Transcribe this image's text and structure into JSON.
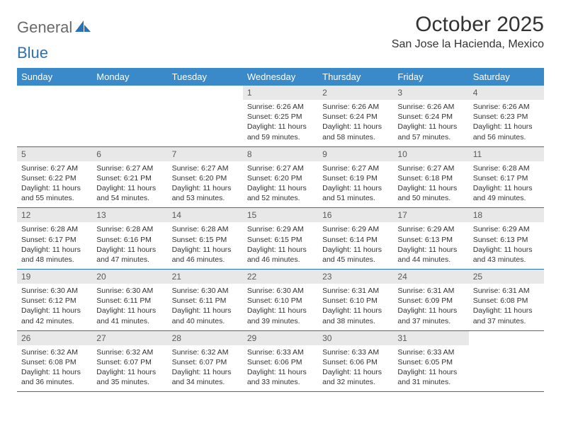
{
  "logo": {
    "word1": "General",
    "word2": "Blue"
  },
  "title": "October 2025",
  "location": "San Jose la Hacienda, Mexico",
  "colors": {
    "header_bg": "#3a89c9",
    "border": "#2a72b5",
    "daynum_bg": "#e8e8e8",
    "text": "#333333",
    "logo_gray": "#6a6a6a",
    "logo_blue": "#2a72b5"
  },
  "weekdays": [
    "Sunday",
    "Monday",
    "Tuesday",
    "Wednesday",
    "Thursday",
    "Friday",
    "Saturday"
  ],
  "weeks": [
    [
      {
        "n": "",
        "sr": "",
        "ss": "",
        "dl1": "",
        "dl2": ""
      },
      {
        "n": "",
        "sr": "",
        "ss": "",
        "dl1": "",
        "dl2": ""
      },
      {
        "n": "",
        "sr": "",
        "ss": "",
        "dl1": "",
        "dl2": ""
      },
      {
        "n": "1",
        "sr": "Sunrise: 6:26 AM",
        "ss": "Sunset: 6:25 PM",
        "dl1": "Daylight: 11 hours",
        "dl2": "and 59 minutes."
      },
      {
        "n": "2",
        "sr": "Sunrise: 6:26 AM",
        "ss": "Sunset: 6:24 PM",
        "dl1": "Daylight: 11 hours",
        "dl2": "and 58 minutes."
      },
      {
        "n": "3",
        "sr": "Sunrise: 6:26 AM",
        "ss": "Sunset: 6:24 PM",
        "dl1": "Daylight: 11 hours",
        "dl2": "and 57 minutes."
      },
      {
        "n": "4",
        "sr": "Sunrise: 6:26 AM",
        "ss": "Sunset: 6:23 PM",
        "dl1": "Daylight: 11 hours",
        "dl2": "and 56 minutes."
      }
    ],
    [
      {
        "n": "5",
        "sr": "Sunrise: 6:27 AM",
        "ss": "Sunset: 6:22 PM",
        "dl1": "Daylight: 11 hours",
        "dl2": "and 55 minutes."
      },
      {
        "n": "6",
        "sr": "Sunrise: 6:27 AM",
        "ss": "Sunset: 6:21 PM",
        "dl1": "Daylight: 11 hours",
        "dl2": "and 54 minutes."
      },
      {
        "n": "7",
        "sr": "Sunrise: 6:27 AM",
        "ss": "Sunset: 6:20 PM",
        "dl1": "Daylight: 11 hours",
        "dl2": "and 53 minutes."
      },
      {
        "n": "8",
        "sr": "Sunrise: 6:27 AM",
        "ss": "Sunset: 6:20 PM",
        "dl1": "Daylight: 11 hours",
        "dl2": "and 52 minutes."
      },
      {
        "n": "9",
        "sr": "Sunrise: 6:27 AM",
        "ss": "Sunset: 6:19 PM",
        "dl1": "Daylight: 11 hours",
        "dl2": "and 51 minutes."
      },
      {
        "n": "10",
        "sr": "Sunrise: 6:27 AM",
        "ss": "Sunset: 6:18 PM",
        "dl1": "Daylight: 11 hours",
        "dl2": "and 50 minutes."
      },
      {
        "n": "11",
        "sr": "Sunrise: 6:28 AM",
        "ss": "Sunset: 6:17 PM",
        "dl1": "Daylight: 11 hours",
        "dl2": "and 49 minutes."
      }
    ],
    [
      {
        "n": "12",
        "sr": "Sunrise: 6:28 AM",
        "ss": "Sunset: 6:17 PM",
        "dl1": "Daylight: 11 hours",
        "dl2": "and 48 minutes."
      },
      {
        "n": "13",
        "sr": "Sunrise: 6:28 AM",
        "ss": "Sunset: 6:16 PM",
        "dl1": "Daylight: 11 hours",
        "dl2": "and 47 minutes."
      },
      {
        "n": "14",
        "sr": "Sunrise: 6:28 AM",
        "ss": "Sunset: 6:15 PM",
        "dl1": "Daylight: 11 hours",
        "dl2": "and 46 minutes."
      },
      {
        "n": "15",
        "sr": "Sunrise: 6:29 AM",
        "ss": "Sunset: 6:15 PM",
        "dl1": "Daylight: 11 hours",
        "dl2": "and 46 minutes."
      },
      {
        "n": "16",
        "sr": "Sunrise: 6:29 AM",
        "ss": "Sunset: 6:14 PM",
        "dl1": "Daylight: 11 hours",
        "dl2": "and 45 minutes."
      },
      {
        "n": "17",
        "sr": "Sunrise: 6:29 AM",
        "ss": "Sunset: 6:13 PM",
        "dl1": "Daylight: 11 hours",
        "dl2": "and 44 minutes."
      },
      {
        "n": "18",
        "sr": "Sunrise: 6:29 AM",
        "ss": "Sunset: 6:13 PM",
        "dl1": "Daylight: 11 hours",
        "dl2": "and 43 minutes."
      }
    ],
    [
      {
        "n": "19",
        "sr": "Sunrise: 6:30 AM",
        "ss": "Sunset: 6:12 PM",
        "dl1": "Daylight: 11 hours",
        "dl2": "and 42 minutes."
      },
      {
        "n": "20",
        "sr": "Sunrise: 6:30 AM",
        "ss": "Sunset: 6:11 PM",
        "dl1": "Daylight: 11 hours",
        "dl2": "and 41 minutes."
      },
      {
        "n": "21",
        "sr": "Sunrise: 6:30 AM",
        "ss": "Sunset: 6:11 PM",
        "dl1": "Daylight: 11 hours",
        "dl2": "and 40 minutes."
      },
      {
        "n": "22",
        "sr": "Sunrise: 6:30 AM",
        "ss": "Sunset: 6:10 PM",
        "dl1": "Daylight: 11 hours",
        "dl2": "and 39 minutes."
      },
      {
        "n": "23",
        "sr": "Sunrise: 6:31 AM",
        "ss": "Sunset: 6:10 PM",
        "dl1": "Daylight: 11 hours",
        "dl2": "and 38 minutes."
      },
      {
        "n": "24",
        "sr": "Sunrise: 6:31 AM",
        "ss": "Sunset: 6:09 PM",
        "dl1": "Daylight: 11 hours",
        "dl2": "and 37 minutes."
      },
      {
        "n": "25",
        "sr": "Sunrise: 6:31 AM",
        "ss": "Sunset: 6:08 PM",
        "dl1": "Daylight: 11 hours",
        "dl2": "and 37 minutes."
      }
    ],
    [
      {
        "n": "26",
        "sr": "Sunrise: 6:32 AM",
        "ss": "Sunset: 6:08 PM",
        "dl1": "Daylight: 11 hours",
        "dl2": "and 36 minutes."
      },
      {
        "n": "27",
        "sr": "Sunrise: 6:32 AM",
        "ss": "Sunset: 6:07 PM",
        "dl1": "Daylight: 11 hours",
        "dl2": "and 35 minutes."
      },
      {
        "n": "28",
        "sr": "Sunrise: 6:32 AM",
        "ss": "Sunset: 6:07 PM",
        "dl1": "Daylight: 11 hours",
        "dl2": "and 34 minutes."
      },
      {
        "n": "29",
        "sr": "Sunrise: 6:33 AM",
        "ss": "Sunset: 6:06 PM",
        "dl1": "Daylight: 11 hours",
        "dl2": "and 33 minutes."
      },
      {
        "n": "30",
        "sr": "Sunrise: 6:33 AM",
        "ss": "Sunset: 6:06 PM",
        "dl1": "Daylight: 11 hours",
        "dl2": "and 32 minutes."
      },
      {
        "n": "31",
        "sr": "Sunrise: 6:33 AM",
        "ss": "Sunset: 6:05 PM",
        "dl1": "Daylight: 11 hours",
        "dl2": "and 31 minutes."
      },
      {
        "n": "",
        "sr": "",
        "ss": "",
        "dl1": "",
        "dl2": ""
      }
    ]
  ]
}
